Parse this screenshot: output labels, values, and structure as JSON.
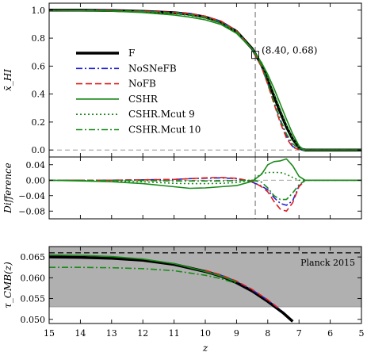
{
  "chart_data": [
    {
      "type": "line",
      "ylabel": "x̄_HI",
      "xlim": [
        15,
        5
      ],
      "ylim": [
        -0.05,
        1.05
      ],
      "yticks": [
        "0.0",
        "0.2",
        "0.4",
        "0.6",
        "0.8",
        "1.0"
      ],
      "reference_line": {
        "x": 8.4
      },
      "annotation": {
        "text": "(8.40, 0.68)",
        "x": 8.4,
        "y": 0.68
      },
      "legend": {
        "placement": "left-center"
      },
      "series": [
        {
          "name": "F",
          "color": "#000000",
          "style": "solid-thick",
          "x": [
            15,
            14,
            13,
            12,
            11,
            10.5,
            10,
            9.5,
            9,
            8.5,
            8.2,
            8.0,
            7.8,
            7.6,
            7.4,
            7.2,
            7.0,
            6.9,
            6.8,
            6.6,
            6.0,
            5
          ],
          "y": [
            1.0,
            1.0,
            0.997,
            0.992,
            0.982,
            0.971,
            0.951,
            0.915,
            0.848,
            0.725,
            0.61,
            0.5,
            0.385,
            0.27,
            0.165,
            0.078,
            0.02,
            0.005,
            0.0,
            0.0,
            0.0,
            0.0
          ]
        },
        {
          "name": "NoSNeFB",
          "color": "#1f1fd6",
          "style": "dash-dot",
          "x": [
            15,
            14,
            13,
            12,
            11,
            10.5,
            10,
            9.5,
            9,
            8.5,
            8.2,
            8.0,
            7.8,
            7.6,
            7.4,
            7.2,
            7.0,
            6.9,
            6.8,
            6.6,
            6.0,
            5
          ],
          "y": [
            1.0,
            1.0,
            0.997,
            0.993,
            0.984,
            0.975,
            0.956,
            0.921,
            0.852,
            0.72,
            0.595,
            0.475,
            0.34,
            0.21,
            0.1,
            0.025,
            0.005,
            0.0,
            0.0,
            0.0,
            0.0,
            0.0
          ]
        },
        {
          "name": "NoFB",
          "color": "#e02020",
          "style": "dashed",
          "x": [
            15,
            14,
            13,
            12,
            11,
            10.5,
            10,
            9.5,
            9,
            8.5,
            8.2,
            8.0,
            7.8,
            7.6,
            7.4,
            7.2,
            7.0,
            6.9,
            6.8,
            6.6,
            6.0,
            5
          ],
          "y": [
            1.0,
            1.0,
            0.997,
            0.993,
            0.984,
            0.975,
            0.957,
            0.922,
            0.853,
            0.722,
            0.593,
            0.47,
            0.33,
            0.195,
            0.085,
            0.02,
            0.003,
            0.0,
            0.0,
            0.0,
            0.0,
            0.0
          ]
        },
        {
          "name": "CSHR",
          "color": "#1a8a1a",
          "style": "solid",
          "x": [
            15,
            14,
            13,
            12,
            11,
            10.5,
            10,
            9.5,
            9,
            8.5,
            8.2,
            8.0,
            7.8,
            7.6,
            7.4,
            7.2,
            7.0,
            6.9,
            6.8,
            6.6,
            6.0,
            5
          ],
          "y": [
            1.0,
            0.998,
            0.993,
            0.983,
            0.965,
            0.95,
            0.931,
            0.898,
            0.834,
            0.722,
            0.625,
            0.54,
            0.44,
            0.33,
            0.22,
            0.115,
            0.03,
            0.01,
            0.0,
            0.0,
            0.0,
            0.0
          ]
        },
        {
          "name": "CSHR.Mcut 9",
          "color": "#1a8a1a",
          "style": "dotted",
          "x": [
            15,
            14,
            13,
            12,
            11,
            10.5,
            10,
            9.5,
            9,
            8.5,
            8.2,
            8.0,
            7.8,
            7.6,
            7.4,
            7.2,
            7.0,
            6.9,
            6.8,
            6.6,
            6.0,
            5
          ],
          "y": [
            1.0,
            0.999,
            0.995,
            0.988,
            0.974,
            0.962,
            0.942,
            0.907,
            0.842,
            0.725,
            0.627,
            0.52,
            0.405,
            0.29,
            0.18,
            0.085,
            0.02,
            0.004,
            0.0,
            0.0,
            0.0,
            0.0
          ]
        },
        {
          "name": "CSHR.Mcut 10",
          "color": "#1a8a1a",
          "style": "dash-dot",
          "x": [
            15,
            14,
            13,
            12,
            11,
            10.5,
            10,
            9.5,
            9,
            8.5,
            8.2,
            8.0,
            7.8,
            7.6,
            7.4,
            7.2,
            7.0,
            6.9,
            6.8,
            6.6,
            6.0,
            5
          ],
          "y": [
            1.0,
            1.0,
            0.996,
            0.991,
            0.98,
            0.969,
            0.949,
            0.913,
            0.847,
            0.724,
            0.605,
            0.48,
            0.345,
            0.22,
            0.115,
            0.045,
            0.008,
            0.0,
            0.0,
            0.0,
            0.0,
            0.0
          ]
        }
      ]
    },
    {
      "type": "line",
      "ylabel": "Difference",
      "xlim": [
        15,
        5
      ],
      "ylim": [
        -0.1,
        0.06
      ],
      "yticks": [
        "0.04",
        "0.00",
        "−0.04",
        "−0.08"
      ],
      "reference_line": {
        "x": 8.4
      },
      "series": [
        {
          "name": "NoSNeFB",
          "color": "#1f1fd6",
          "style": "dash-dot",
          "x": [
            15,
            13,
            12,
            11,
            10.5,
            10,
            9.5,
            9,
            8.5,
            8.2,
            8.0,
            7.8,
            7.6,
            7.4,
            7.2,
            7.0,
            6.8,
            6.6,
            6.0,
            5
          ],
          "y": [
            0.0,
            0.0,
            0.001,
            0.002,
            0.004,
            0.005,
            0.006,
            0.004,
            -0.005,
            -0.015,
            -0.025,
            -0.045,
            -0.06,
            -0.065,
            -0.053,
            -0.015,
            0.0,
            0.0,
            0.0,
            0.0
          ]
        },
        {
          "name": "NoFB",
          "color": "#e02020",
          "style": "dashed",
          "x": [
            15,
            13,
            12,
            11,
            10.5,
            10,
            9.5,
            9,
            8.5,
            8.2,
            8.0,
            7.8,
            7.6,
            7.4,
            7.2,
            7.0,
            6.8,
            6.6,
            6.0,
            5
          ],
          "y": [
            0.0,
            0.0,
            0.001,
            0.002,
            0.004,
            0.006,
            0.007,
            0.005,
            -0.003,
            -0.017,
            -0.03,
            -0.055,
            -0.075,
            -0.08,
            -0.058,
            -0.017,
            0.0,
            0.0,
            0.0,
            0.0
          ]
        },
        {
          "name": "CSHR",
          "color": "#1a8a1a",
          "style": "solid",
          "x": [
            15,
            14,
            13,
            12,
            11,
            10.5,
            10,
            9.5,
            9,
            8.5,
            8.2,
            8.0,
            7.8,
            7.6,
            7.4,
            7.2,
            7.0,
            6.8,
            6.6,
            6.0,
            5
          ],
          "y": [
            0.0,
            -0.002,
            -0.004,
            -0.009,
            -0.017,
            -0.021,
            -0.02,
            -0.017,
            -0.014,
            -0.003,
            0.015,
            0.04,
            0.048,
            0.05,
            0.055,
            0.037,
            0.01,
            0.0,
            0.0,
            0.0,
            0.0
          ]
        },
        {
          "name": "CSHR.Mcut 9",
          "color": "#1a8a1a",
          "style": "dotted",
          "x": [
            15,
            14,
            13,
            12,
            11,
            10.5,
            10,
            9.5,
            9,
            8.5,
            8.2,
            8.0,
            7.8,
            7.6,
            7.4,
            7.2,
            7.0,
            6.8,
            6.6,
            6.0,
            5
          ],
          "y": [
            0.0,
            -0.001,
            -0.002,
            -0.004,
            -0.008,
            -0.009,
            -0.009,
            -0.008,
            -0.006,
            0.0,
            0.017,
            0.02,
            0.02,
            0.02,
            0.015,
            0.007,
            0.0,
            0.0,
            0.0,
            0.0,
            0.0
          ]
        },
        {
          "name": "CSHR.Mcut 10",
          "color": "#1a8a1a",
          "style": "dash-dot",
          "x": [
            15,
            13,
            12,
            11,
            10.5,
            10,
            9.5,
            9,
            8.5,
            8.2,
            8.0,
            7.8,
            7.6,
            7.4,
            7.2,
            7.0,
            6.8,
            6.6,
            6.0,
            5
          ],
          "y": [
            0.0,
            -0.001,
            -0.001,
            -0.002,
            -0.002,
            -0.002,
            -0.002,
            -0.001,
            0.0,
            -0.005,
            -0.02,
            -0.04,
            -0.05,
            -0.05,
            -0.033,
            -0.012,
            0.0,
            0.0,
            0.0,
            0.0
          ]
        }
      ]
    },
    {
      "type": "line",
      "ylabel": "τ_CMB(z)",
      "xlabel": "z",
      "xlim": [
        15,
        5
      ],
      "ylim": [
        0.049,
        0.0675
      ],
      "xticks": [
        "15",
        "14",
        "13",
        "12",
        "11",
        "10",
        "9",
        "8",
        "7",
        "6",
        "5"
      ],
      "yticks": [
        "0.050",
        "0.055",
        "0.060",
        "0.065"
      ],
      "shaded_band": {
        "ymin": 0.053,
        "ymax": 0.0675,
        "color": "#b0b0b0"
      },
      "reference_line": {
        "y": 0.066,
        "label": "Planck 2015",
        "style": "dashed"
      },
      "series": [
        {
          "name": "F",
          "color": "#000000",
          "style": "solid-thick",
          "x": [
            15,
            14,
            13,
            12,
            11,
            10,
            9.5,
            9,
            8.5,
            8,
            7.5,
            7.2
          ],
          "y": [
            0.065,
            0.0649,
            0.0647,
            0.0642,
            0.0632,
            0.0615,
            0.0604,
            0.0588,
            0.0568,
            0.0543,
            0.0515,
            0.0495
          ]
        },
        {
          "name": "NoSNeFB",
          "color": "#1f1fd6",
          "style": "dash-dot",
          "x": [
            10,
            9.5,
            9,
            8.5,
            8,
            7.6
          ],
          "y": [
            0.0617,
            0.0606,
            0.0591,
            0.0571,
            0.0546,
            0.0523
          ]
        },
        {
          "name": "NoFB",
          "color": "#e02020",
          "style": "dashed",
          "x": [
            10,
            9.5,
            9,
            8.5,
            8,
            7.6
          ],
          "y": [
            0.0618,
            0.0607,
            0.0592,
            0.0572,
            0.0547,
            0.0524
          ]
        },
        {
          "name": "CSHR",
          "color": "#1a8a1a",
          "style": "solid",
          "x": [
            15,
            14,
            13,
            12,
            11,
            10,
            9.5,
            9
          ],
          "y": [
            0.0655,
            0.0654,
            0.0651,
            0.0645,
            0.0634,
            0.0615,
            0.0604,
            0.059
          ]
        },
        {
          "name": "CSHR.Mcut 10",
          "color": "#1a8a1a",
          "style": "dash-dot",
          "x": [
            15,
            14,
            13,
            12,
            11,
            10,
            9.5,
            9
          ],
          "y": [
            0.0625,
            0.0625,
            0.0624,
            0.0622,
            0.0617,
            0.0606,
            0.0598,
            0.0586
          ]
        }
      ]
    }
  ]
}
